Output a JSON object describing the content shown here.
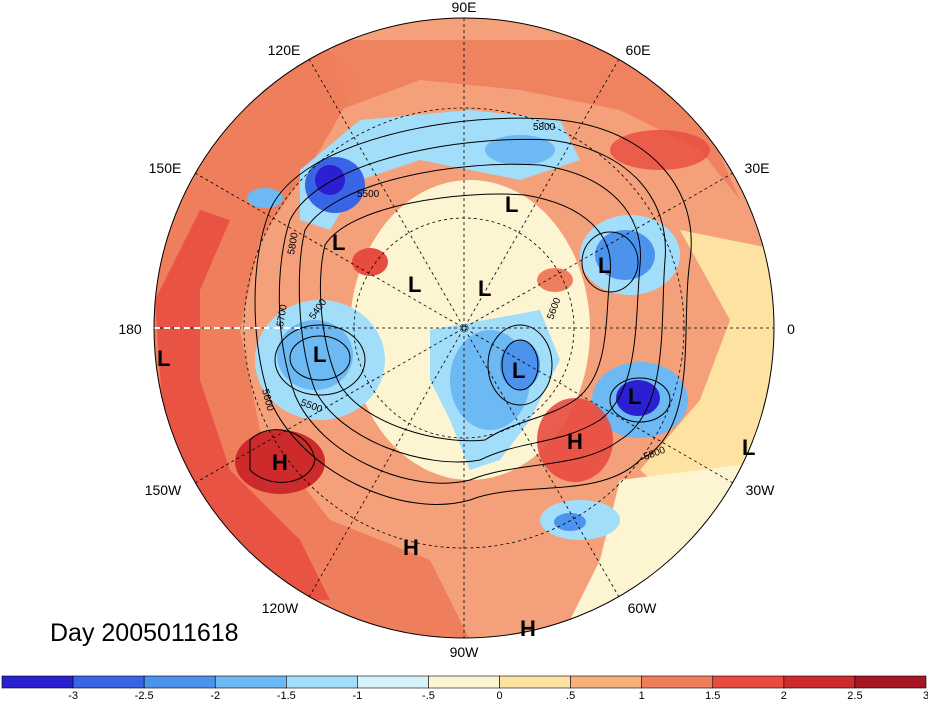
{
  "title": "Day 2005011618",
  "map": {
    "projection": "polar-stereographic-north",
    "longitude_labels": [
      "90E",
      "60E",
      "30E",
      "0",
      "30W",
      "60W",
      "90W",
      "120W",
      "150W",
      "180",
      "150E",
      "120E"
    ],
    "contour_labels": [
      "5800",
      "5500",
      "5800",
      "5700",
      "5400",
      "5500",
      "5600",
      "5800",
      "5600"
    ],
    "pressure_centers": [
      {
        "type": "L"
      },
      {
        "type": "L"
      },
      {
        "type": "L"
      },
      {
        "type": "L"
      },
      {
        "type": "L"
      },
      {
        "type": "L"
      },
      {
        "type": "L"
      },
      {
        "type": "L"
      },
      {
        "type": "L"
      },
      {
        "type": "H"
      },
      {
        "type": "H"
      },
      {
        "type": "H"
      },
      {
        "type": "H"
      }
    ]
  },
  "colorbar": {
    "tick_labels": [
      "-3",
      "-2.5",
      "-2",
      "-1.5",
      "-1",
      "-.5",
      "0",
      ".5",
      "1",
      "1.5",
      "2",
      "2.5",
      "3"
    ],
    "colors": [
      "#2a1fd1",
      "#3a64e6",
      "#4c93ee",
      "#6cb9f4",
      "#a2def9",
      "#d5f2fb",
      "#fdf5d2",
      "#fde2a2",
      "#f7b27c",
      "#ef7f5c",
      "#e84b40",
      "#cd2a2b",
      "#a81623"
    ]
  }
}
